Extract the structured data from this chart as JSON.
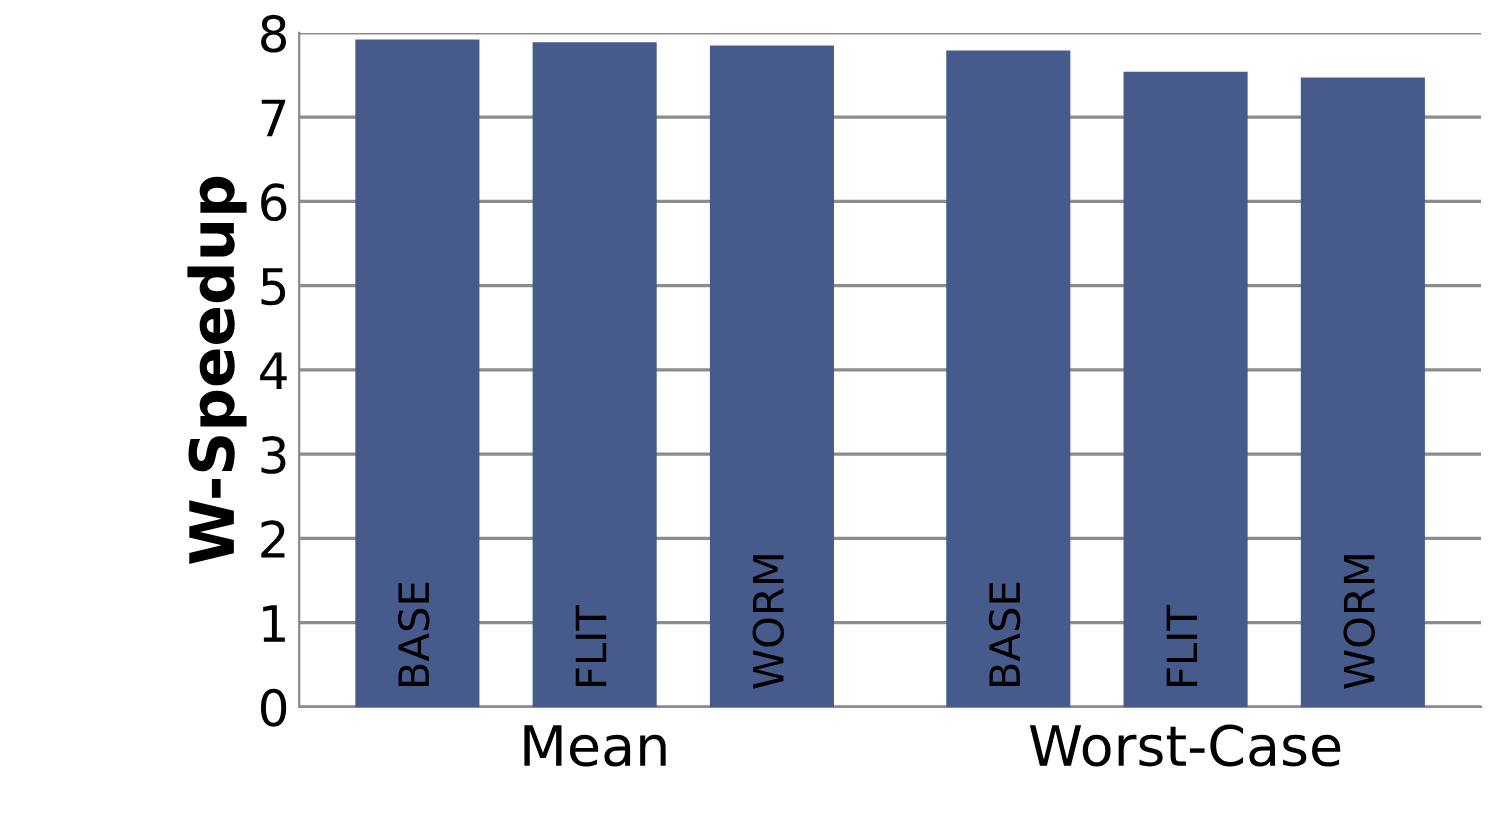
{
  "chart_data": {
    "type": "bar",
    "ylabel": "W-Speedup",
    "categories": [
      "Mean",
      "Worst-Case"
    ],
    "series": [
      {
        "name": "BASE",
        "color": "#465a8c",
        "values": [
          7.92,
          7.79
        ]
      },
      {
        "name": "FLIT",
        "color": "#465a8c",
        "values": [
          7.89,
          7.54
        ]
      },
      {
        "name": "WORM",
        "color": "#465a8c",
        "values": [
          7.85,
          7.47
        ]
      }
    ],
    "ylim": [
      0,
      8
    ],
    "yticks": [
      0,
      1,
      2,
      3,
      4,
      5,
      6,
      7,
      8
    ],
    "grid": "y"
  }
}
